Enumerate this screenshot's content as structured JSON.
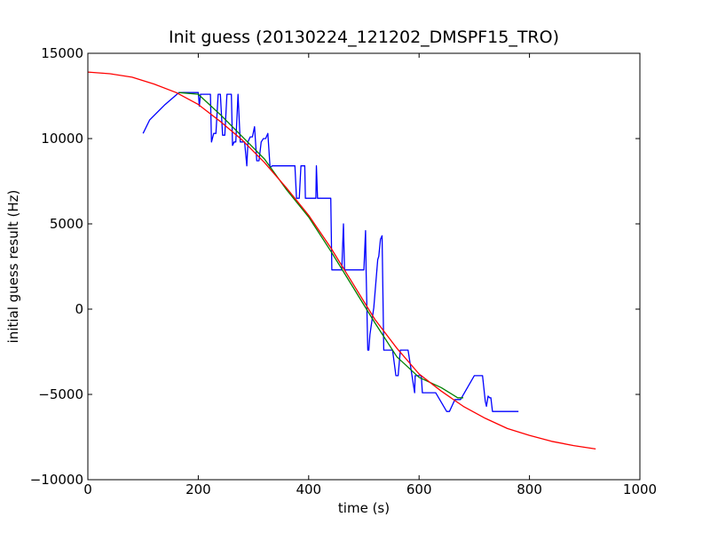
{
  "chart_data": {
    "type": "line",
    "title": "Init guess (20130224_121202_DMSPF15_TRO)",
    "xlabel": "time (s)",
    "ylabel": "initial guess result (Hz)",
    "xlim": [
      0,
      1000
    ],
    "ylim": [
      -10000,
      15000
    ],
    "xticks": [
      0,
      200,
      400,
      600,
      800,
      1000
    ],
    "yticks": [
      -10000,
      -5000,
      0,
      5000,
      10000,
      15000
    ],
    "xtick_labels": [
      "0",
      "200",
      "400",
      "600",
      "800",
      "1000"
    ],
    "ytick_labels": [
      "−10000",
      "−5000",
      "0",
      "5000",
      "10000",
      "15000"
    ],
    "grid": false,
    "series": [
      {
        "color": "#0000ff",
        "x": [
          100,
          112,
          140,
          165,
          200,
          202,
          204,
          222,
          224,
          228,
          232,
          236,
          240,
          244,
          248,
          252,
          255,
          260,
          262,
          265,
          268,
          272,
          276,
          280,
          284,
          288,
          290,
          294,
          298,
          302,
          306,
          310,
          314,
          318,
          322,
          326,
          330,
          334,
          336,
          340,
          348,
          350,
          360,
          375,
          378,
          383,
          386,
          388,
          393,
          394,
          396,
          399,
          413,
          414,
          416,
          418,
          420,
          425,
          440,
          442,
          443,
          460,
          463,
          465,
          470,
          477,
          478,
          480,
          485,
          488,
          490,
          494,
          500,
          503,
          504,
          507,
          509,
          511,
          518,
          525,
          527,
          530,
          533,
          536,
          540,
          550,
          552,
          558,
          562,
          566,
          570,
          580,
          592,
          593,
          604,
          606,
          608,
          610,
          615,
          630,
          650,
          655,
          665,
          675,
          700,
          715,
          720,
          722,
          725,
          728,
          730,
          733,
          780
        ],
        "y": [
          10300,
          11100,
          12000,
          12700,
          12700,
          11900,
          12600,
          12600,
          9800,
          10300,
          10300,
          12600,
          12600,
          10200,
          10200,
          12600,
          12600,
          12600,
          9600,
          9800,
          9800,
          12600,
          9800,
          9800,
          9800,
          8400,
          9800,
          10100,
          10100,
          10700,
          8700,
          8700,
          9800,
          10000,
          10000,
          10300,
          8300,
          8400,
          8400,
          8400,
          8400,
          8400,
          8400,
          8400,
          6500,
          6500,
          8400,
          8400,
          8400,
          6500,
          6500,
          6500,
          6500,
          8400,
          6500,
          6500,
          6500,
          6500,
          6500,
          2300,
          2300,
          2300,
          5000,
          2300,
          2300,
          2300,
          2300,
          2300,
          2300,
          2300,
          2300,
          2300,
          2300,
          4600,
          2300,
          -2400,
          -2400,
          -1500,
          100,
          2900,
          3100,
          4100,
          4300,
          -2400,
          -2400,
          -2400,
          -2400,
          -3900,
          -3900,
          -2400,
          -2400,
          -2400,
          -4900,
          -3900,
          -3900,
          -4900,
          -4900,
          -4900,
          -4900,
          -4900,
          -6000,
          -6000,
          -5300,
          -5300,
          -3900,
          -3900,
          -5400,
          -5700,
          -5100,
          -5200,
          -5200,
          -6000,
          -6000
        ]
      },
      {
        "color": "#008000",
        "x": [
          165,
          200,
          240,
          280,
          320,
          360,
          400,
          440,
          480,
          520,
          560,
          600,
          640,
          670,
          680
        ],
        "y": [
          12700,
          12600,
          11400,
          10100,
          8800,
          7000,
          5400,
          3400,
          1300,
          -800,
          -2800,
          -4000,
          -4600,
          -5200,
          -5200
        ]
      },
      {
        "color": "#ff0000",
        "x": [
          0,
          40,
          80,
          120,
          160,
          200,
          240,
          280,
          320,
          360,
          400,
          440,
          480,
          520,
          560,
          600,
          640,
          680,
          720,
          760,
          800,
          840,
          880,
          920
        ],
        "y": [
          13900,
          13800,
          13600,
          13200,
          12700,
          12000,
          11000,
          9900,
          8600,
          7100,
          5500,
          3600,
          1500,
          -600,
          -2300,
          -3800,
          -4800,
          -5700,
          -6400,
          -7000,
          -7400,
          -7750,
          -8000,
          -8200
        ]
      }
    ]
  }
}
